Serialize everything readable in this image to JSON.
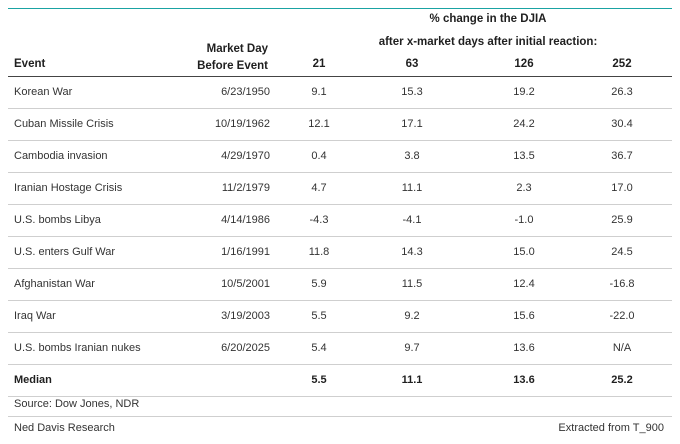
{
  "header": {
    "group_line1": "% change in the DJIA",
    "group_line2": "after x-market days after initial reaction:",
    "market_day_line1": "Market Day",
    "market_day_line2": "Before Event",
    "columns": [
      "Event",
      "21",
      "63",
      "126",
      "252"
    ]
  },
  "rows": [
    {
      "event": "Korean War",
      "date": "6/23/1950",
      "d21": "9.1",
      "d63": "15.3",
      "d126": "19.2",
      "d252": "26.3"
    },
    {
      "event": "Cuban Missile Crisis",
      "date": "10/19/1962",
      "d21": "12.1",
      "d63": "17.1",
      "d126": "24.2",
      "d252": "30.4"
    },
    {
      "event": "Cambodia invasion",
      "date": "4/29/1970",
      "d21": "0.4",
      "d63": "3.8",
      "d126": "13.5",
      "d252": "36.7"
    },
    {
      "event": "Iranian Hostage Crisis",
      "date": "11/2/1979",
      "d21": "4.7",
      "d63": "11.1",
      "d126": "2.3",
      "d252": "17.0"
    },
    {
      "event": "U.S. bombs Libya",
      "date": "4/14/1986",
      "d21": "-4.3",
      "d63": "-4.1",
      "d126": "-1.0",
      "d252": "25.9"
    },
    {
      "event": "U.S. enters Gulf War",
      "date": "1/16/1991",
      "d21": "11.8",
      "d63": "14.3",
      "d126": "15.0",
      "d252": "24.5"
    },
    {
      "event": "Afghanistan War",
      "date": "10/5/2001",
      "d21": "5.9",
      "d63": "11.5",
      "d126": "12.4",
      "d252": "-16.8"
    },
    {
      "event": "Iraq War",
      "date": "3/19/2003",
      "d21": "5.5",
      "d63": "9.2",
      "d126": "15.6",
      "d252": "-22.0"
    },
    {
      "event": "U.S. bombs Iranian nukes",
      "date": "6/20/2025",
      "d21": "5.4",
      "d63": "9.7",
      "d126": "13.6",
      "d252": "N/A"
    }
  ],
  "median": {
    "label": "Median",
    "d21": "5.5",
    "d63": "11.1",
    "d126": "13.6",
    "d252": "25.2"
  },
  "footer": {
    "source": "Source: Dow Jones, NDR",
    "publisher": "Ned Davis Research",
    "extracted": "Extracted from T_900"
  },
  "colors": {
    "accent_line": "#1aa3a3",
    "rule": "#cfcfcf",
    "text": "#2b2b2b"
  }
}
